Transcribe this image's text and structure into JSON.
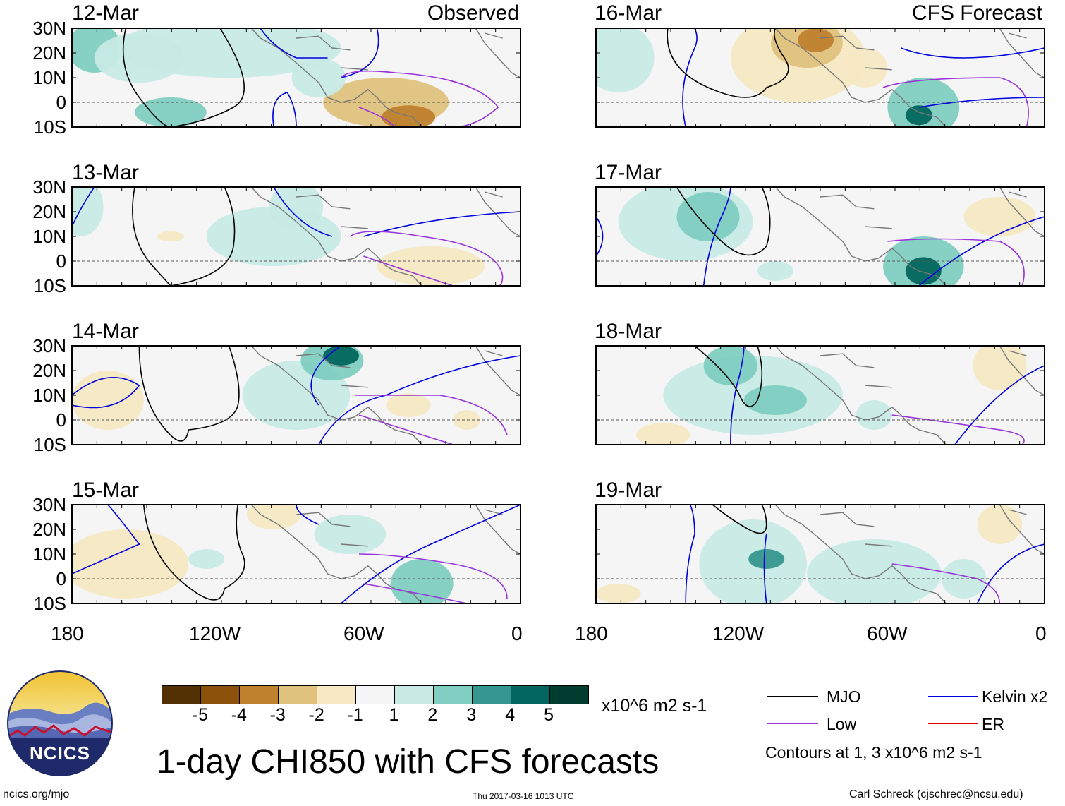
{
  "figure": {
    "title": "1-day CHI850 with CFS forecasts",
    "units_label": "x10^6 m2 s-1",
    "contours_note": "Contours at 1, 3 x10^6 m2 s-1",
    "url": "ncics.org/mjo",
    "timestamp": "Thu 2017-03-16 1013 UTC",
    "author": "Carl Schreck (cjschrec@ncsu.edu)",
    "logo_text": "NCICS"
  },
  "columns": {
    "left_tag": "Observed",
    "right_tag": "CFS Forecast"
  },
  "panels_left": [
    {
      "date": "12-Mar"
    },
    {
      "date": "13-Mar"
    },
    {
      "date": "14-Mar"
    },
    {
      "date": "15-Mar"
    }
  ],
  "panels_right": [
    {
      "date": "16-Mar"
    },
    {
      "date": "17-Mar"
    },
    {
      "date": "18-Mar"
    },
    {
      "date": "19-Mar"
    }
  ],
  "lat_labels": [
    "30N",
    "20N",
    "10N",
    "0",
    "10S"
  ],
  "lon_labels": [
    "180",
    "120W",
    "60W",
    "0"
  ],
  "colorbar": {
    "ticks": [
      "-5",
      "-4",
      "-3",
      "-2",
      "-1",
      "1",
      "2",
      "3",
      "4",
      "5"
    ],
    "colors": [
      "#543005",
      "#8c510a",
      "#bf812d",
      "#dfc27d",
      "#f6e8c3",
      "#f5f5f5",
      "#c7eae5",
      "#80cdc1",
      "#35978f",
      "#01665e",
      "#003c30"
    ]
  },
  "legend": [
    {
      "label": "MJO",
      "color": "#000000"
    },
    {
      "label": "Kelvin x2",
      "color": "#0000dd"
    },
    {
      "label": "Low",
      "color": "#9933dd"
    },
    {
      "label": "ER",
      "color": "#dd0000"
    }
  ]
}
